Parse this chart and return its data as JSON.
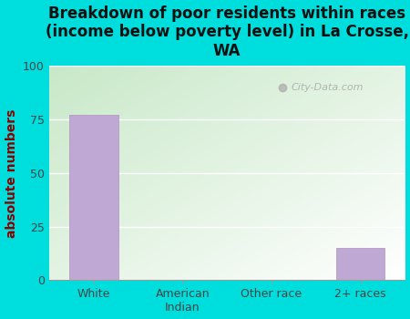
{
  "title": "Breakdown of poor residents within races\n(income below poverty level) in La Crosse,\nWA",
  "categories": [
    "White",
    "American\nIndian",
    "Other race",
    "2+ races"
  ],
  "values": [
    77,
    0,
    0,
    15
  ],
  "bar_color": "#c0a8d4",
  "bar_edge_color": "#b090c0",
  "ylabel": "absolute numbers",
  "ylim": [
    0,
    100
  ],
  "yticks": [
    0,
    25,
    50,
    75,
    100
  ],
  "outer_bg": "#00dddd",
  "plot_bg_topleft": "#c8e8c8",
  "plot_bg_bottomright": "#ffffff",
  "watermark": "City-Data.com",
  "title_fontsize": 12,
  "ylabel_fontsize": 10,
  "tick_fontsize": 9,
  "ylabel_color": "#8b0000"
}
